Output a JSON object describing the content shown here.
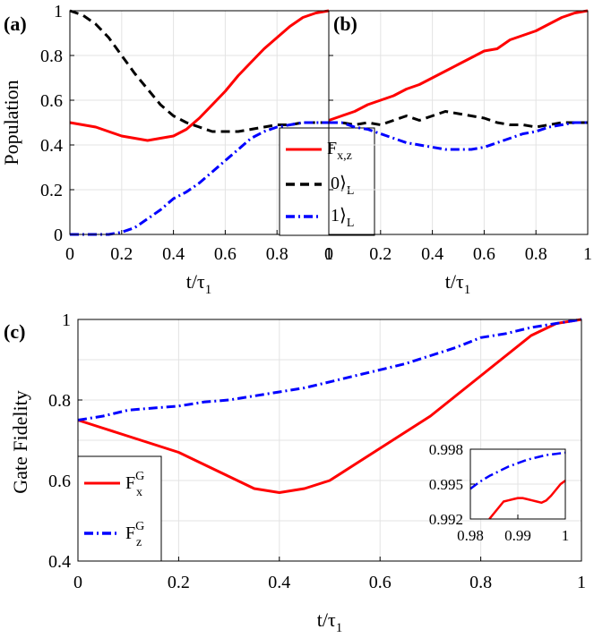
{
  "colors": {
    "red": "#ff0000",
    "black": "#000000",
    "blue": "#0000ff",
    "grid": "#e3e3e3"
  },
  "chart_data": [
    {
      "type": "line",
      "panel_label": "(a)",
      "ylabel": "Population",
      "xlabel_main": "t/τ",
      "xlabel_sub": "1",
      "xlim": [
        0,
        1
      ],
      "ylim": [
        0,
        1
      ],
      "xticks": [
        "0",
        "0.2",
        "0.4",
        "0.6",
        "0.8",
        "1"
      ],
      "yticks": [
        "0",
        "0.2",
        "0.4",
        "0.6",
        "0.8",
        "1"
      ],
      "grid": true,
      "legend": {
        "position": "bottom-right",
        "entries": [
          {
            "main": "F",
            "sub": "x,z",
            "color": "#ff0000",
            "style": "solid"
          },
          {
            "main": "|0⟩",
            "sub": "L",
            "color": "#000000",
            "style": "dash"
          },
          {
            "main": "|1⟩",
            "sub": "L",
            "color": "#0000ff",
            "style": "dashdot"
          }
        ]
      },
      "series": [
        {
          "name": "F_x,z",
          "color": "#ff0000",
          "style": "solid",
          "x": [
            0,
            0.05,
            0.1,
            0.15,
            0.2,
            0.25,
            0.3,
            0.35,
            0.4,
            0.45,
            0.5,
            0.55,
            0.6,
            0.65,
            0.7,
            0.75,
            0.8,
            0.85,
            0.9,
            0.95,
            1.0
          ],
          "y": [
            0.5,
            0.49,
            0.48,
            0.46,
            0.44,
            0.43,
            0.42,
            0.43,
            0.44,
            0.47,
            0.52,
            0.58,
            0.64,
            0.71,
            0.77,
            0.83,
            0.88,
            0.93,
            0.97,
            0.99,
            1.0
          ]
        },
        {
          "name": "|0>_L",
          "color": "#000000",
          "style": "dash",
          "x": [
            0,
            0.05,
            0.1,
            0.15,
            0.2,
            0.25,
            0.3,
            0.35,
            0.4,
            0.45,
            0.5,
            0.55,
            0.6,
            0.65,
            0.7,
            0.75,
            0.8,
            0.85,
            0.9,
            0.95,
            1.0
          ],
          "y": [
            1.0,
            0.98,
            0.94,
            0.88,
            0.8,
            0.72,
            0.65,
            0.58,
            0.53,
            0.5,
            0.48,
            0.46,
            0.46,
            0.46,
            0.47,
            0.48,
            0.49,
            0.49,
            0.5,
            0.5,
            0.5
          ]
        },
        {
          "name": "|1>_L",
          "color": "#0000ff",
          "style": "dashdot",
          "x": [
            0,
            0.05,
            0.1,
            0.15,
            0.2,
            0.25,
            0.3,
            0.35,
            0.4,
            0.45,
            0.5,
            0.55,
            0.6,
            0.65,
            0.7,
            0.75,
            0.8,
            0.85,
            0.9,
            0.95,
            1.0
          ],
          "y": [
            0.0,
            0.0,
            0.0,
            0.0,
            0.01,
            0.03,
            0.07,
            0.11,
            0.16,
            0.19,
            0.23,
            0.28,
            0.33,
            0.38,
            0.43,
            0.46,
            0.48,
            0.49,
            0.5,
            0.5,
            0.5
          ]
        }
      ]
    },
    {
      "type": "line",
      "panel_label": "(b)",
      "xlabel_main": "t/τ",
      "xlabel_sub": "1",
      "xlim": [
        0,
        1
      ],
      "ylim": [
        0,
        1
      ],
      "xticks": [
        "0",
        "0.2",
        "0.4",
        "0.6",
        "0.8",
        "1"
      ],
      "grid": true,
      "series": [
        {
          "name": "F_x,z",
          "color": "#ff0000",
          "style": "solid",
          "x": [
            0,
            0.05,
            0.1,
            0.15,
            0.2,
            0.25,
            0.3,
            0.35,
            0.4,
            0.45,
            0.5,
            0.55,
            0.6,
            0.65,
            0.7,
            0.75,
            0.8,
            0.85,
            0.9,
            0.95,
            1.0
          ],
          "y": [
            0.51,
            0.53,
            0.55,
            0.58,
            0.6,
            0.62,
            0.65,
            0.67,
            0.7,
            0.73,
            0.76,
            0.79,
            0.82,
            0.83,
            0.87,
            0.89,
            0.91,
            0.94,
            0.97,
            0.99,
            1.0
          ]
        },
        {
          "name": "|0>_L",
          "color": "#000000",
          "style": "dash",
          "x": [
            0,
            0.05,
            0.1,
            0.15,
            0.2,
            0.25,
            0.3,
            0.35,
            0.4,
            0.45,
            0.5,
            0.55,
            0.6,
            0.65,
            0.7,
            0.75,
            0.8,
            0.85,
            0.9,
            0.95,
            1.0
          ],
          "y": [
            0.5,
            0.5,
            0.49,
            0.5,
            0.49,
            0.51,
            0.53,
            0.51,
            0.53,
            0.55,
            0.54,
            0.53,
            0.52,
            0.5,
            0.49,
            0.49,
            0.48,
            0.49,
            0.5,
            0.5,
            0.5
          ]
        },
        {
          "name": "|1>_L",
          "color": "#0000ff",
          "style": "dashdot",
          "x": [
            0,
            0.05,
            0.1,
            0.15,
            0.2,
            0.25,
            0.3,
            0.35,
            0.4,
            0.45,
            0.5,
            0.55,
            0.6,
            0.65,
            0.7,
            0.75,
            0.8,
            0.85,
            0.9,
            0.95,
            1.0
          ],
          "y": [
            0.5,
            0.5,
            0.48,
            0.47,
            0.45,
            0.43,
            0.41,
            0.4,
            0.39,
            0.38,
            0.38,
            0.38,
            0.39,
            0.41,
            0.43,
            0.45,
            0.46,
            0.48,
            0.49,
            0.5,
            0.5
          ]
        }
      ]
    },
    {
      "type": "line",
      "panel_label": "(c)",
      "ylabel": "Gate Fidelity",
      "xlabel_main": "t/τ",
      "xlabel_sub": "1",
      "xlim": [
        0,
        1
      ],
      "ylim": [
        0.4,
        1
      ],
      "xticks": [
        "0",
        "0.2",
        "0.4",
        "0.6",
        "0.8",
        "1"
      ],
      "yticks": [
        "0.4",
        "0.6",
        "0.8",
        "1"
      ],
      "grid": true,
      "legend": {
        "position": "bottom-left",
        "entries": [
          {
            "main": "F",
            "sup": "G",
            "sub": "x",
            "color": "#ff0000",
            "style": "solid"
          },
          {
            "main": "F",
            "sup": "G",
            "sub": "z",
            "color": "#0000ff",
            "style": "dashdot"
          }
        ]
      },
      "series": [
        {
          "name": "F_x^G",
          "color": "#ff0000",
          "style": "solid",
          "x": [
            0,
            0.05,
            0.1,
            0.15,
            0.2,
            0.25,
            0.3,
            0.35,
            0.4,
            0.45,
            0.5,
            0.55,
            0.6,
            0.65,
            0.7,
            0.75,
            0.8,
            0.85,
            0.9,
            0.95,
            1.0
          ],
          "y": [
            0.75,
            0.73,
            0.71,
            0.69,
            0.67,
            0.64,
            0.61,
            0.58,
            0.57,
            0.58,
            0.6,
            0.64,
            0.68,
            0.72,
            0.76,
            0.81,
            0.86,
            0.91,
            0.96,
            0.99,
            1.0
          ]
        },
        {
          "name": "F_z^G",
          "color": "#0000ff",
          "style": "dashdot",
          "x": [
            0,
            0.05,
            0.1,
            0.15,
            0.2,
            0.25,
            0.3,
            0.35,
            0.4,
            0.45,
            0.5,
            0.55,
            0.6,
            0.65,
            0.7,
            0.75,
            0.8,
            0.85,
            0.9,
            0.95,
            1.0
          ],
          "y": [
            0.75,
            0.76,
            0.775,
            0.78,
            0.785,
            0.795,
            0.8,
            0.81,
            0.82,
            0.83,
            0.845,
            0.86,
            0.875,
            0.89,
            0.91,
            0.93,
            0.955,
            0.965,
            0.98,
            0.99,
            1.0
          ]
        }
      ],
      "inset": {
        "xlim": [
          0.98,
          1
        ],
        "ylim": [
          0.992,
          0.998
        ],
        "xticks": [
          "0.98",
          "0.99",
          "1"
        ],
        "yticks": [
          "0.992",
          "0.995",
          "0.998"
        ],
        "series": [
          {
            "name": "F_x^G",
            "color": "#ff0000",
            "style": "solid",
            "x": [
              0.984,
              0.985,
              0.986,
              0.987,
              0.988,
              0.989,
              0.99,
              0.991,
              0.992,
              0.993,
              0.994,
              0.995,
              0.996,
              0.997,
              0.998,
              0.999,
              1.0
            ],
            "y": [
              0.992,
              0.9925,
              0.993,
              0.9935,
              0.9936,
              0.9937,
              0.9938,
              0.9938,
              0.9937,
              0.9936,
              0.9935,
              0.9934,
              0.9936,
              0.994,
              0.9945,
              0.995,
              0.9953
            ]
          },
          {
            "name": "F_z^G",
            "color": "#0000ff",
            "style": "dashdot",
            "x": [
              0.98,
              0.982,
              0.984,
              0.986,
              0.988,
              0.99,
              0.992,
              0.994,
              0.996,
              0.998,
              1.0
            ],
            "y": [
              0.9946,
              0.9952,
              0.9957,
              0.9961,
              0.9965,
              0.9968,
              0.9971,
              0.9973,
              0.9975,
              0.9976,
              0.9977
            ]
          }
        ]
      }
    }
  ]
}
